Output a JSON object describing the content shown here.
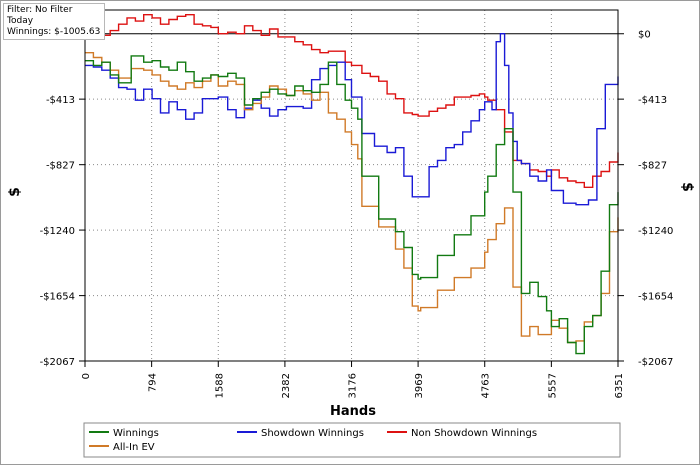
{
  "info": {
    "filter": "Filter: No Filter",
    "period": "Today",
    "winnings": "Winnings: $-1005.63"
  },
  "chart_data": {
    "type": "line",
    "title": "",
    "xlabel": "Hands",
    "ylabel": "$",
    "xlim": [
      0,
      6351
    ],
    "ylim": [
      -2067,
      150
    ],
    "grid": true,
    "legend_position": "bottom",
    "x_ticks": [
      0,
      794,
      1588,
      2382,
      3176,
      3969,
      4763,
      5557,
      6351
    ],
    "y_ticks": [
      0,
      -413,
      -827,
      -1240,
      -1654,
      -2067
    ],
    "y_tick_labels": [
      "$0",
      "-$413",
      "-$827",
      "-$1240",
      "-$1654",
      "-$2067"
    ],
    "colors": {
      "Winnings": "#127a12",
      "Showdown Winnings": "#1a1ad6",
      "Non Showdown Winnings": "#dd1111",
      "All-In EV": "#d07a28"
    },
    "series": [
      {
        "name": "Winnings",
        "x": [
          0,
          100,
          200,
          300,
          400,
          550,
          700,
          800,
          900,
          1000,
          1100,
          1200,
          1300,
          1400,
          1500,
          1588,
          1700,
          1800,
          1900,
          2000,
          2100,
          2200,
          2300,
          2400,
          2500,
          2600,
          2700,
          2800,
          2900,
          3000,
          3100,
          3176,
          3250,
          3300,
          3500,
          3700,
          3800,
          3900,
          3969,
          4000,
          4200,
          4400,
          4600,
          4763,
          4800,
          4900,
          5000,
          5100,
          5200,
          5300,
          5400,
          5500,
          5557,
          5650,
          5750,
          5850,
          5950,
          6050,
          6150,
          6250,
          6351
        ],
        "y": [
          -170,
          -200,
          -180,
          -260,
          -310,
          -140,
          -180,
          -170,
          -210,
          -230,
          -180,
          -240,
          -300,
          -280,
          -260,
          -270,
          -250,
          -280,
          -450,
          -410,
          -370,
          -350,
          -380,
          -390,
          -330,
          -360,
          -370,
          -320,
          -180,
          -320,
          -420,
          -470,
          -540,
          -900,
          -1170,
          -1250,
          -1350,
          -1520,
          -1550,
          -1540,
          -1400,
          -1270,
          -1150,
          -1000,
          -900,
          -700,
          -600,
          -1000,
          -1640,
          -1570,
          -1660,
          -1750,
          -1850,
          -1800,
          -1950,
          -2020,
          -1850,
          -1780,
          -1500,
          -1080,
          -1000
        ]
      },
      {
        "name": "Showdown Winnings",
        "x": [
          0,
          100,
          200,
          300,
          400,
          500,
          600,
          700,
          800,
          900,
          1000,
          1100,
          1200,
          1300,
          1400,
          1588,
          1700,
          1800,
          1900,
          2000,
          2100,
          2200,
          2300,
          2400,
          2600,
          2700,
          2800,
          2900,
          3000,
          3100,
          3176,
          3300,
          3450,
          3600,
          3700,
          3800,
          3900,
          3969,
          4100,
          4200,
          4300,
          4400,
          4500,
          4600,
          4700,
          4763,
          4850,
          4900,
          4950,
          5000,
          5050,
          5100,
          5150,
          5200,
          5300,
          5400,
          5500,
          5557,
          5700,
          5850,
          6000,
          6100,
          6200,
          6351
        ],
        "y": [
          -200,
          -210,
          -230,
          -280,
          -340,
          -350,
          -420,
          -350,
          -410,
          -500,
          -430,
          -480,
          -540,
          -500,
          -410,
          -400,
          -480,
          -530,
          -470,
          -420,
          -470,
          -520,
          -480,
          -460,
          -470,
          -290,
          -220,
          -200,
          -180,
          -290,
          -400,
          -630,
          -710,
          -750,
          -720,
          -900,
          -1030,
          -1030,
          -840,
          -800,
          -720,
          -700,
          -620,
          -550,
          -480,
          -430,
          -480,
          -50,
          0,
          -200,
          -500,
          -680,
          -800,
          -820,
          -900,
          -930,
          -860,
          -990,
          -1070,
          -1080,
          -1050,
          -600,
          -320,
          -270
        ]
      },
      {
        "name": "Non Showdown Winnings",
        "x": [
          0,
          100,
          200,
          300,
          400,
          500,
          600,
          700,
          800,
          900,
          1000,
          1100,
          1200,
          1300,
          1400,
          1500,
          1588,
          1700,
          1800,
          1900,
          2000,
          2100,
          2200,
          2300,
          2382,
          2500,
          2600,
          2700,
          2800,
          2900,
          3000,
          3100,
          3176,
          3300,
          3400,
          3500,
          3600,
          3700,
          3800,
          3900,
          3969,
          4100,
          4200,
          4300,
          4400,
          4500,
          4600,
          4700,
          4763,
          4800,
          4900,
          5000,
          5100,
          5200,
          5300,
          5400,
          5500,
          5557,
          5650,
          5750,
          5850,
          5950,
          6050,
          6150,
          6250,
          6351
        ],
        "y": [
          30,
          10,
          -10,
          20,
          60,
          100,
          80,
          120,
          100,
          60,
          90,
          110,
          120,
          60,
          50,
          40,
          0,
          10,
          0,
          50,
          20,
          -10,
          30,
          -20,
          -20,
          -50,
          -70,
          -100,
          -120,
          -110,
          -110,
          -180,
          -200,
          -250,
          -270,
          -300,
          -380,
          -410,
          -500,
          -510,
          -520,
          -490,
          -470,
          -450,
          -400,
          -400,
          -390,
          -380,
          -400,
          -420,
          -480,
          -620,
          -800,
          -820,
          -860,
          -870,
          -900,
          -860,
          -910,
          -930,
          -940,
          -970,
          -900,
          -870,
          -810,
          -750
        ]
      },
      {
        "name": "All-In EV",
        "x": [
          0,
          100,
          200,
          300,
          400,
          550,
          700,
          800,
          900,
          1000,
          1100,
          1200,
          1300,
          1400,
          1500,
          1588,
          1700,
          1800,
          1900,
          2000,
          2100,
          2200,
          2300,
          2400,
          2500,
          2600,
          2700,
          2800,
          2900,
          3000,
          3100,
          3176,
          3250,
          3300,
          3500,
          3700,
          3800,
          3900,
          3969,
          4000,
          4200,
          4400,
          4600,
          4763,
          4800,
          4900,
          5000,
          5100,
          5200,
          5300,
          5400,
          5500,
          5557,
          5650,
          5750,
          5850,
          5950,
          6050,
          6150,
          6250,
          6351
        ],
        "y": [
          -120,
          -150,
          -180,
          -230,
          -280,
          -220,
          -230,
          -260,
          -300,
          -330,
          -350,
          -310,
          -340,
          -300,
          -260,
          -330,
          -300,
          -320,
          -480,
          -440,
          -400,
          -330,
          -350,
          -390,
          -360,
          -380,
          -420,
          -370,
          -500,
          -540,
          -620,
          -700,
          -790,
          -1090,
          -1220,
          -1360,
          -1480,
          -1720,
          -1750,
          -1730,
          -1620,
          -1540,
          -1480,
          -1380,
          -1300,
          -1200,
          -1100,
          -1600,
          -1910,
          -1850,
          -1900,
          -1900,
          -1810,
          -1860,
          -1950,
          -1940,
          -1820,
          -1780,
          -1640,
          -1250,
          -1160
        ]
      }
    ]
  }
}
